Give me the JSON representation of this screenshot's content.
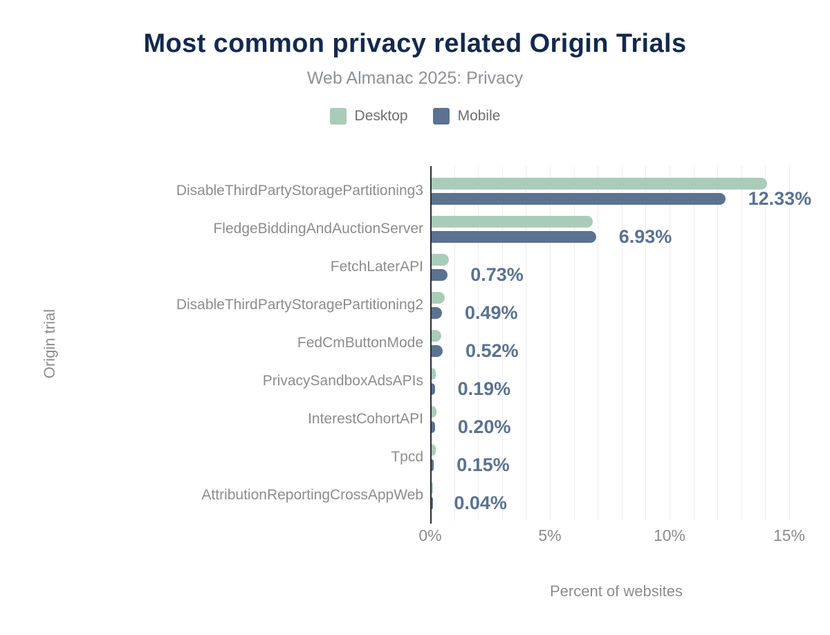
{
  "header": {
    "title": "Most common privacy related Origin Trials",
    "subtitle": "Web Almanac 2025: Privacy"
  },
  "legend": [
    {
      "label": "Desktop",
      "color": "#a9ccb9"
    },
    {
      "label": "Mobile",
      "color": "#5b7290"
    }
  ],
  "colors": {
    "title": "#13294e",
    "subtitle_text": "#8f9194",
    "axis_text": "#8c8c8c",
    "value_label_text": "#5b7290",
    "desktop_bar": "#a9ccb9",
    "mobile_bar": "#5b7290",
    "axis_line": "#2b2b31",
    "gridline": "#ededed"
  },
  "chart_data": {
    "type": "bar",
    "orientation": "horizontal",
    "title": "Most common privacy related Origin Trials",
    "subtitle": "Web Almanac 2025: Privacy",
    "categories": [
      "DisableThirdPartyStoragePartitioning3",
      "FledgeBiddingAndAuctionServer",
      "FetchLaterAPI",
      "DisableThirdPartyStoragePartitioning2",
      "FedCmButtonMode",
      "PrivacySandboxAdsAPIs",
      "InterestCohortAPI",
      "Tpcd",
      "AttributionReportingCrossAppWeb"
    ],
    "series": [
      {
        "name": "Desktop",
        "color": "#a9ccb9",
        "values": [
          14.08,
          6.78,
          0.78,
          0.62,
          0.45,
          0.22,
          0.26,
          0.22,
          0.07
        ]
      },
      {
        "name": "Mobile",
        "color": "#5b7290",
        "values": [
          12.33,
          6.93,
          0.73,
          0.49,
          0.52,
          0.19,
          0.2,
          0.15,
          0.04
        ]
      }
    ],
    "value_labels": [
      "12.33%",
      "6.93%",
      "0.73%",
      "0.49%",
      "0.52%",
      "0.19%",
      "0.20%",
      "0.15%",
      "0.04%"
    ],
    "value_labels_source": "Mobile",
    "xlabel": "Percent of websites",
    "ylabel": "Origin trial",
    "x_ticks": [
      "0%",
      "5%",
      "10%",
      "15%"
    ],
    "x_tick_values": [
      0,
      5,
      10,
      15
    ],
    "xlim": [
      0,
      15.55
    ],
    "grid": "vertical minor gridlines every 1%",
    "legend_position": "top"
  }
}
